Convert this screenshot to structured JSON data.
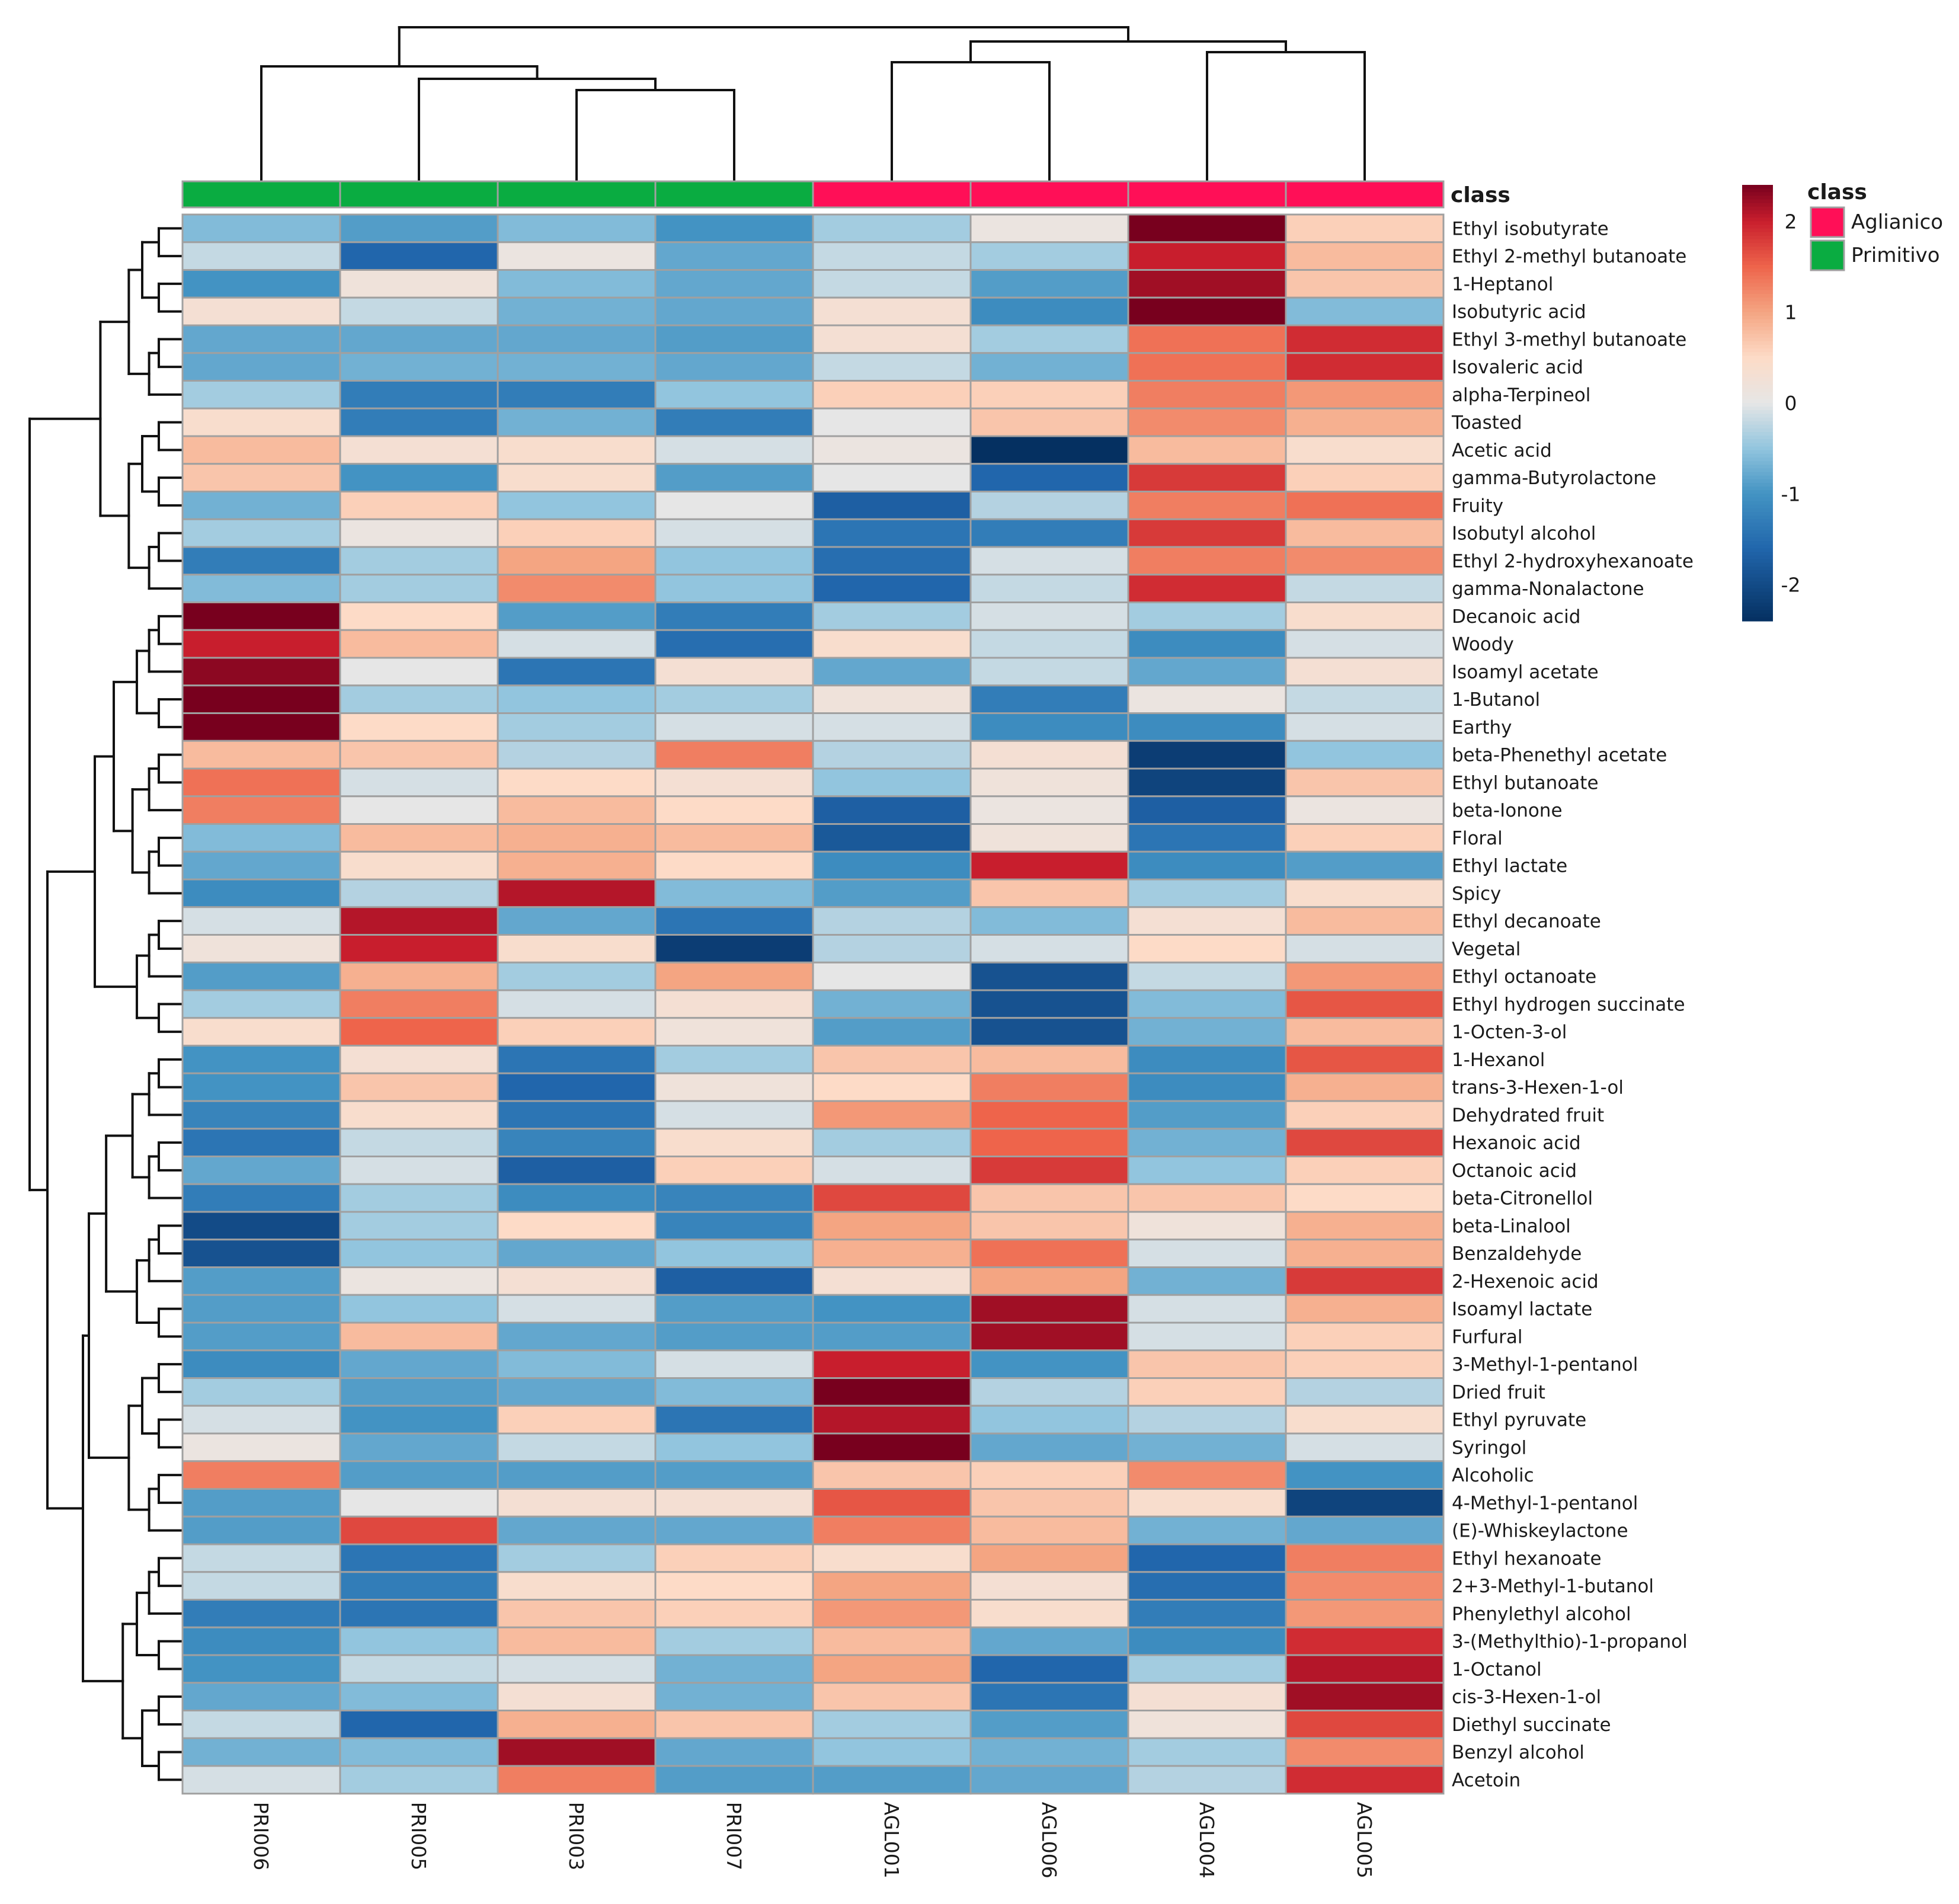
{
  "chart_data": {
    "type": "heatmap",
    "title": "",
    "xlabel": "",
    "ylabel": "",
    "columns": [
      "PRI006",
      "PRI005",
      "PRI003",
      "PRI007",
      "AGL001",
      "AGL006",
      "AGL004",
      "AGL005"
    ],
    "column_class": [
      "Primitivo",
      "Primitivo",
      "Primitivo",
      "Primitivo",
      "Aglianico",
      "Aglianico",
      "Aglianico",
      "Aglianico"
    ],
    "class_annotation_label": "class",
    "legend": {
      "title": "class",
      "entries": [
        {
          "name": "Aglianico",
          "color": "#ff0f57"
        },
        {
          "name": "Primitivo",
          "color": "#0aac41"
        }
      ]
    },
    "color_scale": {
      "min": -2.4,
      "max": 2.4,
      "ticks": [
        2,
        1,
        0,
        -1,
        -2
      ],
      "tick_labels": [
        "2",
        "1",
        "0",
        "-1",
        "-2"
      ],
      "low_color": "#053061",
      "mid_color": "#e6e6e6",
      "high_color": "#67001f"
    },
    "rows": [
      "Ethyl isobutyrate",
      "Ethyl 2-methyl butanoate",
      "1-Heptanol",
      "Isobutyric acid",
      "Ethyl 3-methyl butanoate",
      "Isovaleric acid",
      "alpha-Terpineol",
      "Toasted",
      "Acetic acid",
      "gamma-Butyrolactone",
      "Fruity",
      "Isobutyl alcohol",
      "Ethyl 2-hydroxyhexanoate",
      "gamma-Nonalactone",
      "Decanoic acid",
      "Woody",
      "Isoamyl acetate",
      "1-Butanol",
      "Earthy",
      "beta-Phenethyl acetate",
      "Ethyl butanoate",
      "beta-Ionone",
      "Floral",
      "Ethyl lactate",
      "Spicy",
      "Ethyl decanoate",
      "Vegetal",
      "Ethyl octanoate",
      "Ethyl hydrogen succinate",
      "1-Octen-3-ol",
      "1-Hexanol",
      "trans-3-Hexen-1-ol",
      "Dehydrated fruit",
      "Hexanoic acid",
      "Octanoic acid",
      "beta-Citronellol",
      "beta-Linalool",
      "Benzaldehyde",
      "2-Hexenoic acid",
      "Isoamyl lactate",
      "Furfural",
      "3-Methyl-1-pentanol",
      "Dried fruit",
      "Ethyl pyruvate",
      "Syringol",
      "Alcoholic",
      "4-Methyl-1-pentanol",
      "(E)-Whiskeylactone",
      "Ethyl hexanoate",
      "2+3-Methyl-1-butanol",
      "Phenylethyl alcohol",
      "3-(Methylthio)-1-propanol",
      "1-Octanol",
      "cis-3-Hexen-1-ol",
      "Diethyl succinate",
      "Benzyl alcohol",
      "Acetoin"
    ],
    "values": [
      [
        -0.6,
        -0.9,
        -0.6,
        -1.0,
        -0.4,
        0.1,
        2.4,
        0.6
      ],
      [
        -0.2,
        -1.6,
        0.1,
        -0.8,
        -0.2,
        -0.4,
        2.0,
        0.8
      ],
      [
        -1.0,
        0.2,
        -0.6,
        -0.8,
        -0.2,
        -0.9,
        2.2,
        0.7
      ],
      [
        0.3,
        -0.2,
        -0.7,
        -0.8,
        0.3,
        -1.1,
        2.4,
        -0.6
      ],
      [
        -0.8,
        -0.8,
        -0.8,
        -0.9,
        0.3,
        -0.4,
        1.4,
        1.9
      ],
      [
        -0.8,
        -0.7,
        -0.7,
        -0.8,
        -0.2,
        -0.7,
        1.4,
        1.9
      ],
      [
        -0.4,
        -1.3,
        -1.3,
        -0.5,
        0.6,
        0.6,
        1.3,
        1.1
      ],
      [
        0.4,
        -1.3,
        -0.7,
        -1.3,
        0.0,
        0.7,
        1.2,
        0.9
      ],
      [
        0.8,
        0.3,
        0.4,
        -0.1,
        0.1,
        -2.4,
        0.8,
        0.4
      ],
      [
        0.7,
        -1.0,
        0.4,
        -0.9,
        0.0,
        -1.6,
        1.8,
        0.6
      ],
      [
        -0.7,
        0.6,
        -0.5,
        0.0,
        -1.7,
        -0.3,
        1.3,
        1.4
      ],
      [
        -0.4,
        0.1,
        0.6,
        -0.1,
        -1.4,
        -1.3,
        1.8,
        0.8
      ],
      [
        -1.3,
        -0.4,
        1.0,
        -0.5,
        -1.5,
        -0.1,
        1.3,
        1.2
      ],
      [
        -0.6,
        -0.4,
        1.2,
        -0.5,
        -1.6,
        -0.2,
        1.9,
        -0.2
      ],
      [
        2.4,
        0.5,
        -0.9,
        -1.3,
        -0.4,
        -0.1,
        -0.4,
        0.4
      ],
      [
        2.0,
        0.8,
        -0.1,
        -1.5,
        0.4,
        -0.2,
        -1.1,
        -0.1
      ],
      [
        2.3,
        0.0,
        -1.4,
        0.3,
        -0.8,
        -0.2,
        -0.8,
        0.3
      ],
      [
        2.4,
        -0.4,
        -0.5,
        -0.4,
        0.2,
        -1.3,
        0.1,
        -0.2
      ],
      [
        2.4,
        0.5,
        -0.4,
        -0.1,
        -0.1,
        -1.1,
        -1.1,
        -0.1
      ],
      [
        0.8,
        0.7,
        -0.3,
        1.3,
        -0.3,
        0.3,
        -2.2,
        -0.5
      ],
      [
        1.4,
        -0.1,
        0.5,
        0.3,
        -0.5,
        0.2,
        -2.1,
        0.7
      ],
      [
        1.3,
        0.0,
        0.8,
        0.5,
        -1.7,
        0.1,
        -1.7,
        0.1
      ],
      [
        -0.6,
        0.8,
        0.9,
        0.8,
        -1.8,
        0.2,
        -1.4,
        0.6
      ],
      [
        -0.8,
        0.4,
        0.9,
        0.5,
        -1.1,
        2.0,
        -1.1,
        -0.9
      ],
      [
        -1.1,
        -0.3,
        2.1,
        -0.6,
        -0.9,
        0.7,
        -0.4,
        0.4
      ],
      [
        -0.1,
        2.1,
        -0.8,
        -1.4,
        -0.3,
        -0.6,
        0.3,
        0.8
      ],
      [
        0.2,
        2.0,
        0.4,
        -2.2,
        -0.3,
        -0.1,
        0.5,
        -0.1
      ],
      [
        -0.9,
        0.9,
        -0.4,
        1.0,
        0.0,
        -1.9,
        -0.2,
        1.1
      ],
      [
        -0.4,
        1.3,
        -0.1,
        0.3,
        -0.7,
        -1.9,
        -0.6,
        1.6
      ],
      [
        0.4,
        1.5,
        0.6,
        0.2,
        -0.9,
        -1.9,
        -0.7,
        0.8
      ],
      [
        -1.0,
        0.3,
        -1.4,
        -0.4,
        0.7,
        0.8,
        -1.1,
        1.6
      ],
      [
        -1.0,
        0.7,
        -1.6,
        0.2,
        0.5,
        1.3,
        -1.1,
        0.9
      ],
      [
        -1.2,
        0.4,
        -1.4,
        -0.1,
        1.1,
        1.5,
        -0.9,
        0.6
      ],
      [
        -1.4,
        -0.2,
        -1.2,
        0.4,
        -0.4,
        1.5,
        -0.7,
        1.7
      ],
      [
        -0.8,
        -0.1,
        -1.7,
        0.6,
        -0.1,
        1.8,
        -0.5,
        0.6
      ],
      [
        -1.3,
        -0.4,
        -1.1,
        -1.2,
        1.7,
        0.7,
        0.7,
        0.5
      ],
      [
        -2.0,
        -0.4,
        0.5,
        -1.2,
        1.0,
        0.7,
        0.2,
        0.9
      ],
      [
        -1.9,
        -0.5,
        -0.8,
        -0.5,
        0.9,
        1.4,
        -0.1,
        0.9
      ],
      [
        -0.9,
        0.1,
        0.3,
        -1.7,
        0.3,
        1.0,
        -0.7,
        1.8
      ],
      [
        -0.9,
        -0.5,
        -0.1,
        -0.9,
        -1.0,
        2.2,
        -0.1,
        0.9
      ],
      [
        -0.9,
        0.8,
        -0.8,
        -0.9,
        -0.9,
        2.2,
        -0.1,
        0.6
      ],
      [
        -1.1,
        -0.8,
        -0.6,
        -0.1,
        2.0,
        -1.0,
        0.7,
        0.6
      ],
      [
        -0.4,
        -0.9,
        -0.8,
        -0.6,
        2.4,
        -0.3,
        0.6,
        -0.3
      ],
      [
        -0.1,
        -1.0,
        0.6,
        -1.4,
        2.1,
        -0.5,
        -0.3,
        0.4
      ],
      [
        0.1,
        -0.8,
        -0.2,
        -0.5,
        2.4,
        -0.8,
        -0.7,
        -0.1
      ],
      [
        1.3,
        -0.9,
        -0.9,
        -0.9,
        0.7,
        0.6,
        1.2,
        -1.0
      ],
      [
        -0.9,
        0.0,
        0.3,
        0.3,
        1.6,
        0.7,
        0.4,
        -2.1
      ],
      [
        -0.9,
        1.7,
        -0.8,
        -0.8,
        1.3,
        0.8,
        -0.7,
        -0.8
      ],
      [
        -0.2,
        -1.4,
        -0.4,
        0.6,
        0.4,
        1.0,
        -1.6,
        1.3
      ],
      [
        -0.2,
        -1.3,
        0.4,
        0.5,
        1.0,
        0.3,
        -1.5,
        1.2
      ],
      [
        -1.3,
        -1.4,
        0.7,
        0.6,
        1.1,
        0.4,
        -1.3,
        1.1
      ],
      [
        -1.1,
        -0.5,
        0.8,
        -0.4,
        0.8,
        -0.8,
        -1.1,
        1.9
      ],
      [
        -1.0,
        -0.2,
        -0.1,
        -0.7,
        1.0,
        -1.6,
        -0.4,
        2.1
      ],
      [
        -0.8,
        -0.6,
        0.3,
        -0.7,
        0.7,
        -1.4,
        0.3,
        2.2
      ],
      [
        -0.2,
        -1.6,
        0.9,
        0.7,
        -0.4,
        -0.9,
        0.2,
        1.7
      ],
      [
        -0.7,
        -0.6,
        2.2,
        -0.8,
        -0.5,
        -0.7,
        -0.4,
        1.2
      ],
      [
        -0.1,
        -0.4,
        1.3,
        -0.9,
        -0.9,
        -0.8,
        -0.3,
        1.9
      ]
    ]
  }
}
